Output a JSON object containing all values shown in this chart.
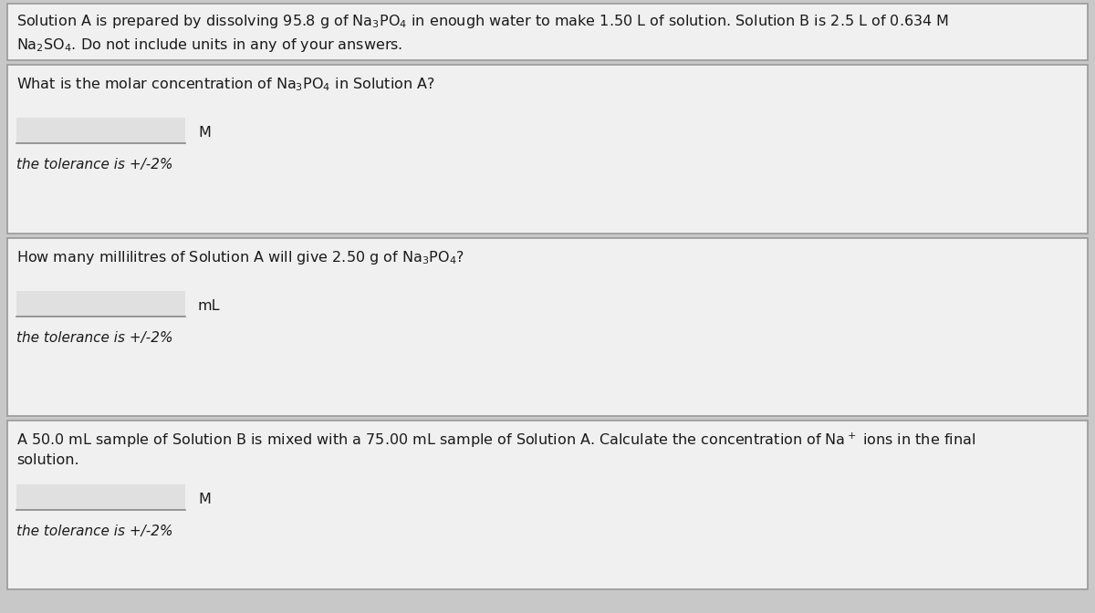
{
  "background_color": "#c8c8c8",
  "panel_color": "#f0f0f0",
  "input_box_color": "#e8e8e8",
  "border_color": "#999999",
  "text_color": "#1a1a1a",
  "header_text_line1": "Solution A is prepared by dissolving 95.8 g of Na$_3$PO$_4$ in enough water to make 1.50 L of solution. Solution B is 2.5 L of 0.634 M",
  "header_text_line2": "Na$_2$SO$_4$. Do not include units in any of your answers.",
  "sections": [
    {
      "question_line1": "What is the molar concentration of Na$_3$PO$_4$ in Solution A?",
      "question_line2": null,
      "unit": "M",
      "tolerance": "the tolerance is +/-2%"
    },
    {
      "question_line1": "How many millilitres of Solution A will give 2.50 g of Na$_3$PO$_4$?",
      "question_line2": null,
      "unit": "mL",
      "tolerance": "the tolerance is +/-2%"
    },
    {
      "question_line1": "A 50.0 mL sample of Solution B is mixed with a 75.00 mL sample of Solution A. Calculate the concentration of Na$^+$ ions in the final",
      "question_line2": "solution.",
      "unit": "M",
      "tolerance": "the tolerance is +/-2%"
    }
  ],
  "figsize": [
    12.0,
    6.72
  ],
  "dpi": 100
}
